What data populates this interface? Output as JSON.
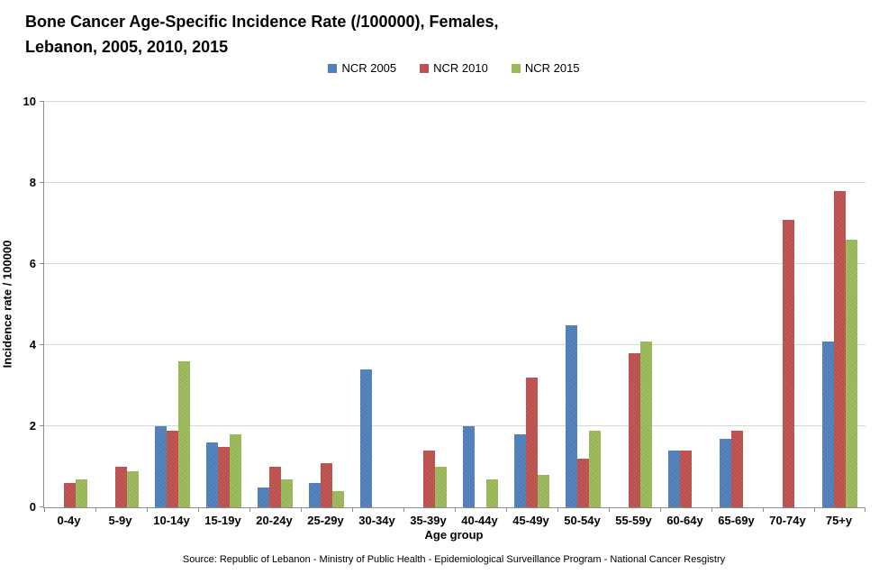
{
  "chart": {
    "title_line1": "Bone Cancer Age-Specific Incidence Rate (/100000), Females,",
    "title_line2": "Lebanon, 2005, 2010, 2015",
    "xlabel": "Age group",
    "ylabel": "Incidence rate / 100000",
    "source": "Source: Republic of Lebanon - Ministry of Public Health - Epidemiological Surveillance Program - National Cancer Resgistry"
  },
  "chart_data": {
    "type": "bar",
    "title": "Bone Cancer Age-Specific Incidence Rate (/100000), Females, Lebanon, 2005, 2010, 2015",
    "xlabel": "Age group",
    "ylabel": "Incidence rate / 100000",
    "ylim": [
      0,
      10
    ],
    "ytick_step": 2,
    "grid": true,
    "legend_position": "top",
    "categories": [
      "0-4y",
      "5-9y",
      "10-14y",
      "15-19y",
      "20-24y",
      "25-29y",
      "30-34y",
      "35-39y",
      "40-44y",
      "45-49y",
      "50-54y",
      "55-59y",
      "60-64y",
      "65-69y",
      "70-74y",
      "75+y"
    ],
    "series": [
      {
        "name": "NCR 2005",
        "color": "#4F81BD",
        "values": [
          null,
          null,
          2.0,
          1.6,
          0.5,
          0.6,
          3.4,
          null,
          2.0,
          1.8,
          4.5,
          null,
          1.4,
          1.7,
          null,
          4.1
        ]
      },
      {
        "name": "NCR 2010",
        "color": "#C0504D",
        "values": [
          0.6,
          1.0,
          1.9,
          1.5,
          1.0,
          1.1,
          null,
          1.4,
          null,
          3.2,
          1.2,
          3.8,
          1.4,
          1.9,
          7.1,
          7.8
        ]
      },
      {
        "name": "NCR 2015",
        "color": "#9BBB59",
        "values": [
          0.7,
          0.9,
          3.6,
          1.8,
          0.7,
          0.4,
          null,
          1.0,
          0.7,
          0.8,
          1.9,
          4.1,
          null,
          null,
          null,
          6.6
        ]
      }
    ]
  },
  "colors": {
    "grid": "#d9d9d0",
    "axis": "#8c8c8c",
    "text": "#000000",
    "background": "#ffffff"
  }
}
